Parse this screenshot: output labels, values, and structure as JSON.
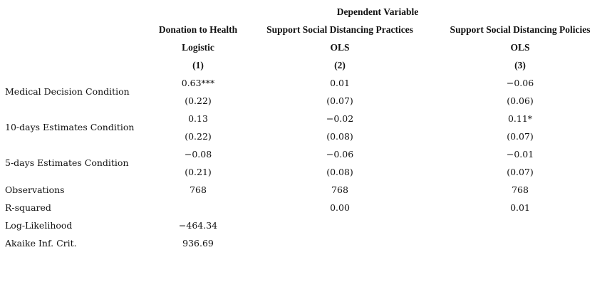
{
  "header": {
    "title": "Dependent Variable",
    "columns": [
      {
        "dependent": "Donation to Health",
        "model": "Logistic",
        "number": "(1)"
      },
      {
        "dependent": "Support Social Distancing Practices",
        "model": "OLS",
        "number": "(2)"
      },
      {
        "dependent": "Support Social Distancing Policies",
        "model": "OLS",
        "number": "(3)"
      }
    ]
  },
  "table": {
    "rows": [
      {
        "label": "Medical Decision Condition",
        "estimates": [
          "0.63***",
          "0.01",
          "−0.06"
        ],
        "std_errors": [
          "(0.22)",
          "(0.07)",
          "(0.06)"
        ]
      },
      {
        "label": "10-days Estimates Condition",
        "estimates": [
          "0.13",
          "−0.02",
          "0.11*"
        ],
        "std_errors": [
          "(0.22)",
          "(0.08)",
          "(0.07)"
        ]
      },
      {
        "label": "5-days Estimates Condition",
        "estimates": [
          "−0.08",
          "−0.06",
          "−0.01"
        ],
        "std_errors": [
          "(0.21)",
          "(0.08)",
          "(0.07)"
        ]
      }
    ],
    "stats": [
      {
        "label": "Observations",
        "values": [
          "768",
          "768",
          "768"
        ]
      },
      {
        "label": "R-squared",
        "values": [
          null,
          "0.00",
          "0.01"
        ]
      },
      {
        "label": "Log-Likelihood",
        "values": [
          "−464.34",
          null,
          null
        ]
      },
      {
        "label": "Akaike Inf. Crit.",
        "values": [
          "936.69",
          null,
          null
        ]
      }
    ]
  }
}
